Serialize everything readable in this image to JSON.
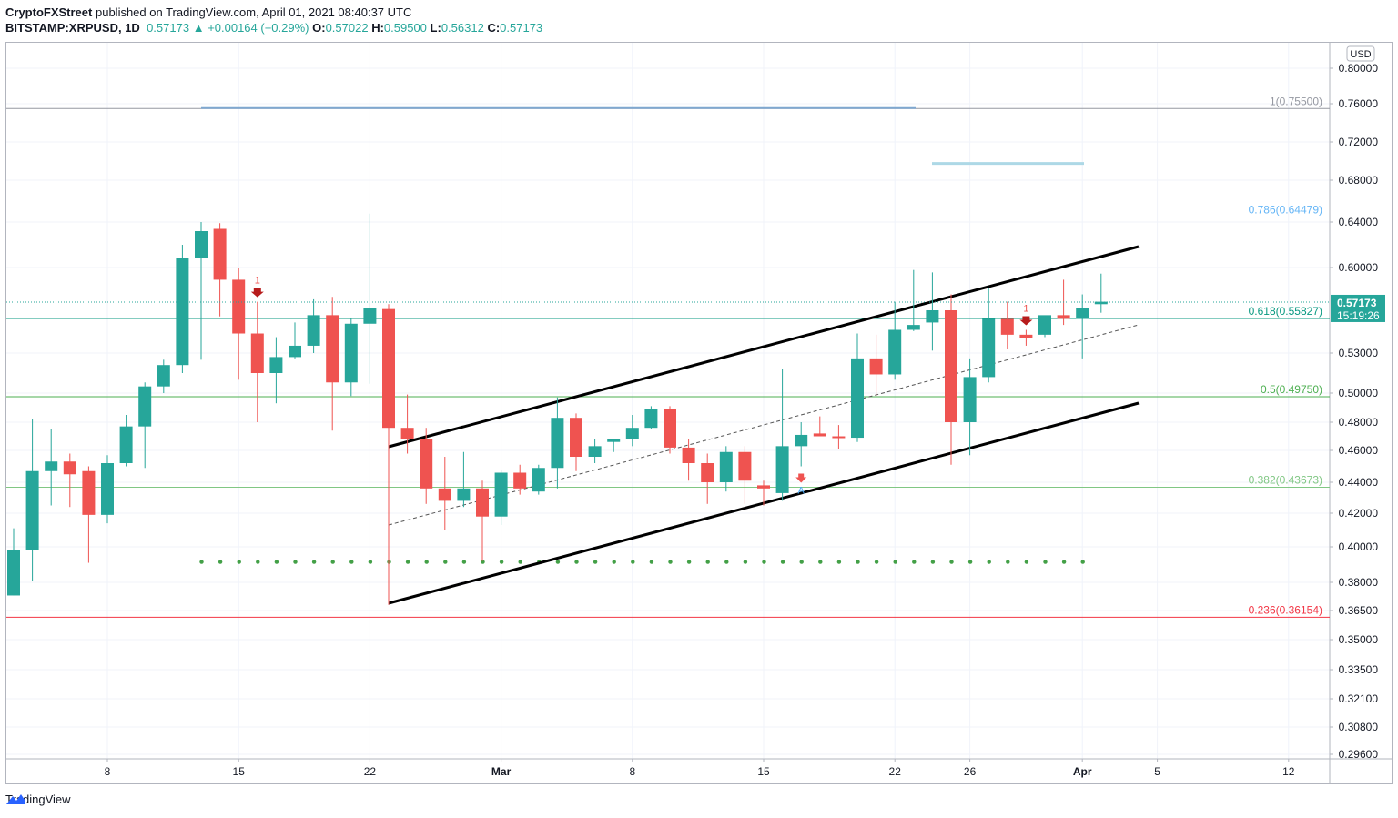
{
  "header": {
    "author": "CryptoFXStreet",
    "published": "published on TradingView.com, April 01, 2021 08:40:37 UTC",
    "symbol": "BITSTAMP:XRPUSD, 1D",
    "last": "0.57173",
    "change": "+0.00164 (+0.29%)",
    "o_label": "O:",
    "o": "0.57022",
    "h_label": "H:",
    "h": "0.59500",
    "l_label": "L:",
    "l": "0.56312",
    "c_label": "C:",
    "c": "0.57173"
  },
  "footer": {
    "brand": "TradingView"
  },
  "colors": {
    "up": "#26a69a",
    "down": "#ef5350",
    "grid": "#f0f3fa"
  },
  "chart_data": {
    "type": "candlestick",
    "currency_label": "USD",
    "y_ticks": [
      "0.80000",
      "0.76000",
      "0.72000",
      "0.68000",
      "0.64000",
      "0.60000",
      "0.53000",
      "0.50000",
      "0.48000",
      "0.46000",
      "0.44000",
      "0.42000",
      "0.40000",
      "0.38000",
      "0.36500",
      "0.35000",
      "0.33500",
      "0.32100",
      "0.30800",
      "0.29600"
    ],
    "x_ticks": [
      "8",
      "15",
      "22",
      "Mar",
      "8",
      "15",
      "22",
      "26",
      "Apr",
      "5",
      "12"
    ],
    "last_price_label": "0.57173",
    "countdown_label": "15:19:26",
    "fib_levels": [
      {
        "label": "1(0.75500)",
        "value": 0.755,
        "color": "#9598a1"
      },
      {
        "label": "0.786(0.64479)",
        "value": 0.64479,
        "color": "#64b5f6"
      },
      {
        "label": "0.618(0.55827)",
        "value": 0.55827,
        "color": "#089981"
      },
      {
        "label": "0.5(0.49750)",
        "value": 0.4975,
        "color": "#4caf50"
      },
      {
        "label": "0.382(0.43673)",
        "value": 0.43673,
        "color": "#81c784"
      },
      {
        "label": "0.236(0.36154)",
        "value": 0.36154,
        "color": "#f23645"
      }
    ],
    "signal_markers": [
      {
        "label": "1",
        "date_index": 13,
        "kind": "sell"
      },
      {
        "label": "1",
        "date_index": 54,
        "kind": "sell"
      },
      {
        "label": "A",
        "date_index": 42,
        "kind": "buy"
      }
    ],
    "candles": [
      {
        "o": 0.373,
        "h": 0.411,
        "l": 0.373,
        "c": 0.398
      },
      {
        "o": 0.398,
        "h": 0.482,
        "l": 0.381,
        "c": 0.447
      },
      {
        "o": 0.447,
        "h": 0.475,
        "l": 0.425,
        "c": 0.453
      },
      {
        "o": 0.453,
        "h": 0.458,
        "l": 0.424,
        "c": 0.445
      },
      {
        "o": 0.447,
        "h": 0.45,
        "l": 0.391,
        "c": 0.419
      },
      {
        "o": 0.419,
        "h": 0.457,
        "l": 0.414,
        "c": 0.452
      },
      {
        "o": 0.452,
        "h": 0.485,
        "l": 0.45,
        "c": 0.477
      },
      {
        "o": 0.477,
        "h": 0.508,
        "l": 0.449,
        "c": 0.505
      },
      {
        "o": 0.505,
        "h": 0.525,
        "l": 0.5,
        "c": 0.521
      },
      {
        "o": 0.521,
        "h": 0.62,
        "l": 0.515,
        "c": 0.608
      },
      {
        "o": 0.608,
        "h": 0.64,
        "l": 0.525,
        "c": 0.632
      },
      {
        "o": 0.634,
        "h": 0.639,
        "l": 0.56,
        "c": 0.59
      },
      {
        "o": 0.59,
        "h": 0.6,
        "l": 0.51,
        "c": 0.546
      },
      {
        "o": 0.546,
        "h": 0.572,
        "l": 0.48,
        "c": 0.515
      },
      {
        "o": 0.515,
        "h": 0.543,
        "l": 0.493,
        "c": 0.527
      },
      {
        "o": 0.527,
        "h": 0.555,
        "l": 0.526,
        "c": 0.536
      },
      {
        "o": 0.536,
        "h": 0.574,
        "l": 0.53,
        "c": 0.561
      },
      {
        "o": 0.561,
        "h": 0.576,
        "l": 0.474,
        "c": 0.508
      },
      {
        "o": 0.508,
        "h": 0.558,
        "l": 0.498,
        "c": 0.554
      },
      {
        "o": 0.554,
        "h": 0.648,
        "l": 0.507,
        "c": 0.567
      },
      {
        "o": 0.566,
        "h": 0.57,
        "l": 0.368,
        "c": 0.476
      },
      {
        "o": 0.476,
        "h": 0.499,
        "l": 0.458,
        "c": 0.468
      },
      {
        "o": 0.468,
        "h": 0.476,
        "l": 0.426,
        "c": 0.436
      },
      {
        "o": 0.436,
        "h": 0.456,
        "l": 0.41,
        "c": 0.428
      },
      {
        "o": 0.428,
        "h": 0.459,
        "l": 0.424,
        "c": 0.436
      },
      {
        "o": 0.436,
        "h": 0.441,
        "l": 0.392,
        "c": 0.418
      },
      {
        "o": 0.418,
        "h": 0.448,
        "l": 0.413,
        "c": 0.446
      },
      {
        "o": 0.446,
        "h": 0.451,
        "l": 0.432,
        "c": 0.436
      },
      {
        "o": 0.434,
        "h": 0.451,
        "l": 0.432,
        "c": 0.449
      },
      {
        "o": 0.449,
        "h": 0.497,
        "l": 0.436,
        "c": 0.483
      },
      {
        "o": 0.483,
        "h": 0.486,
        "l": 0.447,
        "c": 0.456
      },
      {
        "o": 0.456,
        "h": 0.468,
        "l": 0.452,
        "c": 0.463
      },
      {
        "o": 0.466,
        "h": 0.468,
        "l": 0.459,
        "c": 0.468
      },
      {
        "o": 0.468,
        "h": 0.485,
        "l": 0.463,
        "c": 0.476
      },
      {
        "o": 0.476,
        "h": 0.491,
        "l": 0.475,
        "c": 0.489
      },
      {
        "o": 0.489,
        "h": 0.491,
        "l": 0.458,
        "c": 0.462
      },
      {
        "o": 0.462,
        "h": 0.468,
        "l": 0.441,
        "c": 0.452
      },
      {
        "o": 0.452,
        "h": 0.458,
        "l": 0.426,
        "c": 0.44
      },
      {
        "o": 0.44,
        "h": 0.463,
        "l": 0.434,
        "c": 0.459
      },
      {
        "o": 0.459,
        "h": 0.463,
        "l": 0.426,
        "c": 0.441
      },
      {
        "o": 0.438,
        "h": 0.441,
        "l": 0.425,
        "c": 0.436
      },
      {
        "o": 0.433,
        "h": 0.518,
        "l": 0.428,
        "c": 0.463
      },
      {
        "o": 0.463,
        "h": 0.48,
        "l": 0.45,
        "c": 0.471
      },
      {
        "o": 0.472,
        "h": 0.484,
        "l": 0.47,
        "c": 0.47
      },
      {
        "o": 0.47,
        "h": 0.478,
        "l": 0.461,
        "c": 0.469
      },
      {
        "o": 0.469,
        "h": 0.546,
        "l": 0.466,
        "c": 0.526
      },
      {
        "o": 0.526,
        "h": 0.545,
        "l": 0.498,
        "c": 0.514
      },
      {
        "o": 0.514,
        "h": 0.572,
        "l": 0.51,
        "c": 0.549
      },
      {
        "o": 0.549,
        "h": 0.598,
        "l": 0.548,
        "c": 0.553
      },
      {
        "o": 0.555,
        "h": 0.596,
        "l": 0.532,
        "c": 0.565
      },
      {
        "o": 0.565,
        "h": 0.578,
        "l": 0.451,
        "c": 0.48
      },
      {
        "o": 0.48,
        "h": 0.526,
        "l": 0.457,
        "c": 0.512
      },
      {
        "o": 0.512,
        "h": 0.583,
        "l": 0.508,
        "c": 0.558
      },
      {
        "o": 0.558,
        "h": 0.572,
        "l": 0.533,
        "c": 0.545
      },
      {
        "o": 0.545,
        "h": 0.549,
        "l": 0.536,
        "c": 0.542
      },
      {
        "o": 0.545,
        "h": 0.56,
        "l": 0.543,
        "c": 0.561
      },
      {
        "o": 0.561,
        "h": 0.59,
        "l": 0.553,
        "c": 0.558
      },
      {
        "o": 0.558,
        "h": 0.578,
        "l": 0.526,
        "c": 0.567
      },
      {
        "o": 0.57,
        "h": 0.595,
        "l": 0.563,
        "c": 0.572
      }
    ]
  }
}
